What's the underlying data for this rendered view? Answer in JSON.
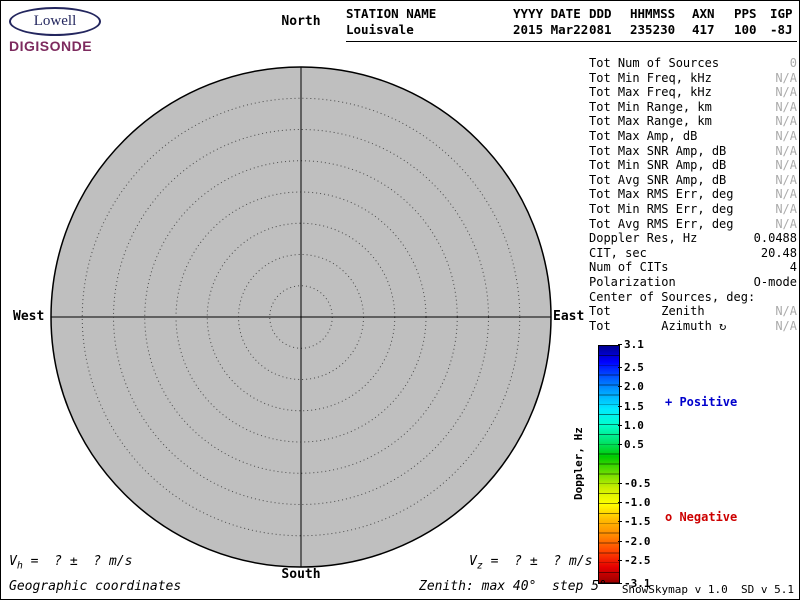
{
  "logo": {
    "name": "Lowell",
    "product": "DIGISONDE"
  },
  "header": {
    "columns": [
      {
        "label": "STATION NAME",
        "value": "Louisvale"
      },
      {
        "label": "YYYY DATE",
        "value": "2015 Mar22"
      },
      {
        "label": "DDD",
        "value": "081"
      },
      {
        "label": "HHMMSS",
        "value": "235230"
      },
      {
        "label": "AXN",
        "value": "417"
      },
      {
        "label": "PPS",
        "value": "100"
      },
      {
        "label": "IGP",
        "value": "-8J"
      }
    ]
  },
  "stats": {
    "rows": [
      {
        "label": "Tot Num of Sources",
        "value": "0",
        "muted": true
      },
      {
        "label": "Tot Min Freq, kHz",
        "value": "N/A",
        "muted": true
      },
      {
        "label": "Tot Max Freq, kHz",
        "value": "N/A",
        "muted": true
      },
      {
        "label": "Tot Min Range, km",
        "value": "N/A",
        "muted": true
      },
      {
        "label": "Tot Max Range, km",
        "value": "N/A",
        "muted": true
      },
      {
        "label": "Tot Max Amp, dB",
        "value": "N/A",
        "muted": true
      },
      {
        "label": "Tot Max SNR Amp, dB",
        "value": "N/A",
        "muted": true
      },
      {
        "label": "Tot Min SNR Amp, dB",
        "value": "N/A",
        "muted": true
      },
      {
        "label": "Tot Avg SNR Amp, dB",
        "value": "N/A",
        "muted": true
      },
      {
        "label": "Tot Max RMS Err, deg",
        "value": "N/A",
        "muted": true
      },
      {
        "label": "Tot Min RMS Err, deg",
        "value": "N/A",
        "muted": true
      },
      {
        "label": "Tot Avg RMS Err, deg",
        "value": "N/A",
        "muted": true
      },
      {
        "label": "Doppler Res, Hz",
        "value": "0.0488",
        "muted": false
      },
      {
        "label": "CIT, sec",
        "value": "20.48",
        "muted": false
      },
      {
        "label": "Num of CITs",
        "value": "4",
        "muted": false
      },
      {
        "label": "Polarization",
        "value": "O-mode",
        "muted": false
      },
      {
        "label": "Center of Sources, deg:",
        "value": "",
        "muted": false
      },
      {
        "label": "Tot       Zenith",
        "value": "N/A",
        "muted": true
      },
      {
        "label": "Tot       Azimuth ↻",
        "value": "N/A",
        "muted": true
      }
    ]
  },
  "compass": {
    "north": "North",
    "south": "South",
    "east": "East",
    "west": "West"
  },
  "skymap": {
    "zenith_max_deg": 40,
    "zenith_step_deg": 5,
    "num_sources": 0,
    "fill": "#bfbfbf"
  },
  "colorbar": {
    "title": "Doppler, Hz",
    "max": 3.1,
    "min": -3.1,
    "ticks": [
      "3.1",
      "2.5",
      "2.0",
      "1.5",
      "1.0",
      "0.5",
      "-0.5",
      "-1.0",
      "-1.5",
      "-2.0",
      "-2.5",
      "-3.1"
    ],
    "colors": [
      "#000091",
      "#0000ff",
      "#0059ff",
      "#00a8ff",
      "#00eaff",
      "#00ffcc",
      "#00e673",
      "#00cc00",
      "#66dd00",
      "#ccee00",
      "#ffff00",
      "#ffbb00",
      "#ff8800",
      "#ff4400",
      "#e60000",
      "#990000"
    ],
    "positive_label": "+ Positive",
    "negative_label": "o Negative",
    "positive_color": "#0000cd",
    "negative_color": "#cd0000"
  },
  "footer": {
    "vh": {
      "base": "V",
      "sub": "h",
      "rest": " =  ? ±  ? m/s"
    },
    "vz": {
      "base": "V",
      "sub": "z",
      "rest": " =  ? ±  ? m/s"
    },
    "coords_note": "Geographic coordinates",
    "zenith_note": "Zenith: max 40°  step 5°",
    "version": "ShowSkymap v 1.0  SD v 5.1"
  }
}
